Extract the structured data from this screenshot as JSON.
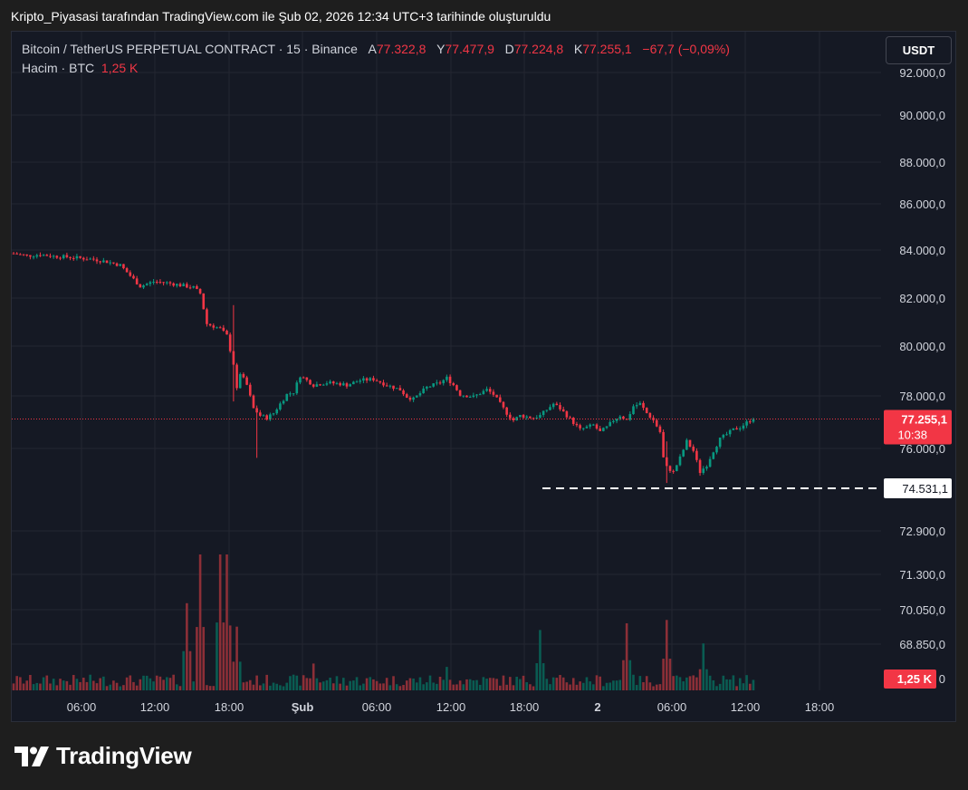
{
  "caption": "Kripto_Piyasasi tarafından TradingView.com ile Şub 02, 2026 12:34 UTC+3 tarihinde oluşturuldu",
  "legend": {
    "symbol": "Bitcoin / TetherUS PERPETUAL CONTRACT · 15 · Binance",
    "open_label": "A",
    "open": "77.322,8",
    "high_label": "Y",
    "high": "77.477,9",
    "low_label": "D",
    "low": "77.224,8",
    "close_label": "K",
    "close": "77.255,1",
    "change": "−67,7 (−0,09%)",
    "volume_label": "Hacim · BTC",
    "volume_value": "1,25 K"
  },
  "currency_button": "USDT",
  "brand": "TradingView",
  "chart_data": {
    "type": "candlestick",
    "interval": "15",
    "y_ticks": [
      "92.000,0",
      "90.000,0",
      "88.000,0",
      "86.000,0",
      "84.000,0",
      "82.000,0",
      "80.000,0",
      "78.000,0",
      "76.000,0",
      "72.900,0",
      "71.300,0",
      "70.050,0",
      "68.850,0",
      "0"
    ],
    "y_tick_values": [
      92000,
      90000,
      88000,
      86000,
      84000,
      82000,
      80000,
      78000,
      76000
    ],
    "x_ticks": [
      "06:00",
      "12:00",
      "18:00",
      "Şub",
      "06:00",
      "12:00",
      "18:00",
      "2",
      "06:00",
      "12:00",
      "18:00"
    ],
    "current_price": 77255.1,
    "current_price_label": "77.255,1",
    "countdown": "10:38",
    "horizontal_line": 74531.1,
    "horizontal_line_label": "74.531,1",
    "volume_label": "1,25 K",
    "colors": {
      "up": "#089981",
      "down": "#f23645",
      "background": "#151924",
      "grid": "#232632",
      "text": "#d1d4dc"
    },
    "price_path": [
      [
        0,
        84300
      ],
      [
        4,
        84200
      ],
      [
        8,
        84250
      ],
      [
        12,
        84180
      ],
      [
        16,
        84150
      ],
      [
        20,
        84100
      ],
      [
        24,
        84050
      ],
      [
        28,
        83950
      ],
      [
        32,
        83800
      ],
      [
        36,
        83200
      ],
      [
        38,
        82900
      ],
      [
        42,
        83100
      ],
      [
        46,
        83050
      ],
      [
        50,
        82950
      ],
      [
        54,
        82850
      ],
      [
        56,
        82600
      ],
      [
        58,
        81300
      ],
      [
        60,
        81200
      ],
      [
        62,
        81100
      ],
      [
        64,
        80800
      ],
      [
        66,
        79600
      ],
      [
        67,
        78500
      ],
      [
        68,
        79200
      ],
      [
        70,
        78700
      ],
      [
        72,
        77700
      ],
      [
        74,
        77400
      ],
      [
        76,
        77300
      ],
      [
        78,
        77500
      ],
      [
        80,
        77900
      ],
      [
        82,
        78300
      ],
      [
        84,
        78400
      ],
      [
        86,
        79100
      ],
      [
        88,
        78900
      ],
      [
        90,
        78700
      ],
      [
        94,
        78800
      ],
      [
        98,
        78750
      ],
      [
        100,
        78700
      ],
      [
        104,
        78900
      ],
      [
        108,
        78950
      ],
      [
        112,
        78700
      ],
      [
        116,
        78500
      ],
      [
        118,
        78200
      ],
      [
        120,
        78100
      ],
      [
        124,
        78600
      ],
      [
        128,
        78800
      ],
      [
        130,
        79000
      ],
      [
        132,
        78700
      ],
      [
        134,
        78300
      ],
      [
        138,
        78200
      ],
      [
        142,
        78500
      ],
      [
        144,
        78300
      ],
      [
        146,
        77900
      ],
      [
        148,
        77500
      ],
      [
        150,
        77200
      ],
      [
        152,
        77400
      ],
      [
        156,
        77300
      ],
      [
        158,
        77400
      ],
      [
        162,
        77900
      ],
      [
        164,
        77700
      ],
      [
        166,
        77400
      ],
      [
        168,
        77100
      ],
      [
        170,
        76800
      ],
      [
        172,
        76900
      ],
      [
        174,
        77000
      ],
      [
        176,
        76700
      ],
      [
        178,
        76900
      ],
      [
        180,
        77200
      ],
      [
        182,
        77400
      ],
      [
        184,
        77200
      ],
      [
        186,
        77800
      ],
      [
        188,
        77900
      ],
      [
        190,
        77500
      ],
      [
        192,
        77200
      ],
      [
        194,
        76700
      ],
      [
        195,
        75600
      ],
      [
        196,
        75200
      ],
      [
        198,
        75000
      ],
      [
        200,
        75600
      ],
      [
        202,
        76300
      ],
      [
        204,
        75900
      ],
      [
        206,
        75000
      ],
      [
        208,
        75300
      ],
      [
        210,
        75900
      ],
      [
        212,
        76400
      ],
      [
        214,
        76600
      ],
      [
        216,
        76800
      ],
      [
        218,
        76900
      ],
      [
        220,
        77100
      ],
      [
        222,
        77300
      ]
    ],
    "spikes": [
      [
        66,
        82100,
        78000
      ],
      [
        73,
        76700,
        75600
      ],
      [
        196,
        76300,
        74531
      ]
    ],
    "volume_spikes": [
      [
        52,
        2.6
      ],
      [
        56,
        4.2
      ],
      [
        62,
        4.5
      ],
      [
        64,
        4.3
      ],
      [
        67,
        1.9
      ],
      [
        90,
        0.8
      ],
      [
        130,
        0.7
      ],
      [
        158,
        1.8
      ],
      [
        184,
        2.0
      ],
      [
        196,
        2.1
      ],
      [
        207,
        1.4
      ]
    ]
  }
}
